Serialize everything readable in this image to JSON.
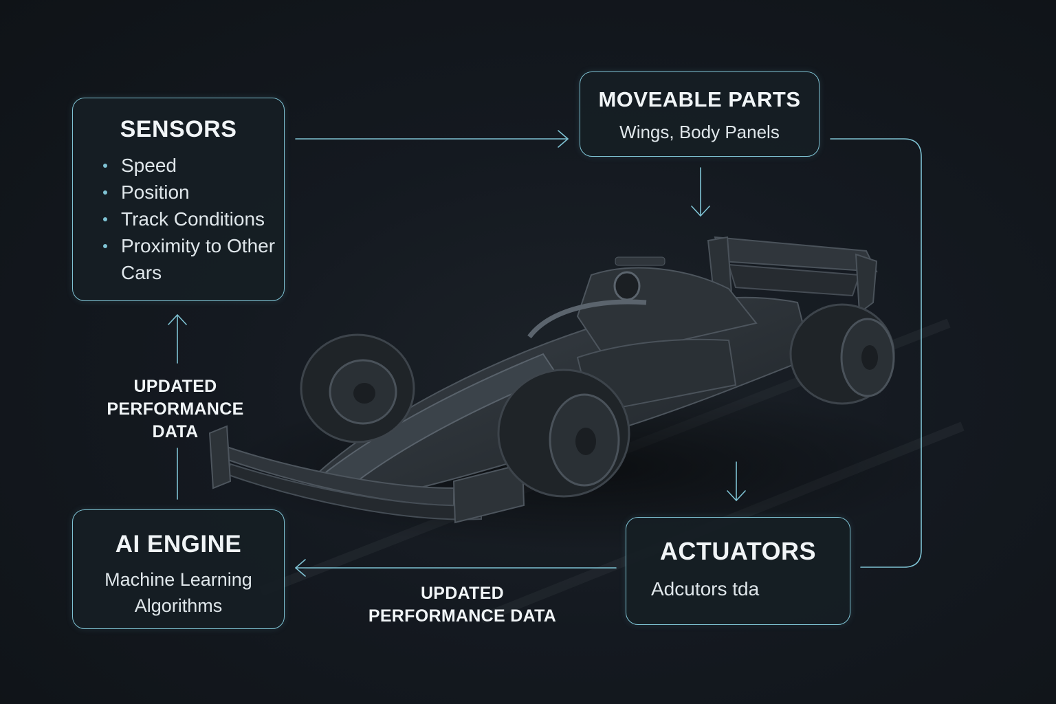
{
  "sensors": {
    "title": "SENSORS",
    "items": [
      "Speed",
      "Position",
      "Track Conditions",
      "Proximity to Other Cars"
    ]
  },
  "moveable_parts": {
    "title": "MOVEABLE PARTS",
    "subtitle": "Wings, Body Panels"
  },
  "ai_engine": {
    "title": "AI ENGINE",
    "subtitle": "Machine Learning Algorithms"
  },
  "actuators": {
    "title": "ACTUATORS",
    "subtitle": "Adcutors tda"
  },
  "flow_labels": {
    "left": "UPDATED PERFORMANCE DATA",
    "bottom": "UPDATED PERFORMANCE DATA"
  },
  "colors": {
    "background": "#12161b",
    "accent": "#7fc3d4",
    "car_body": "#2a2f35"
  },
  "illustration": "formula-1-race-car"
}
